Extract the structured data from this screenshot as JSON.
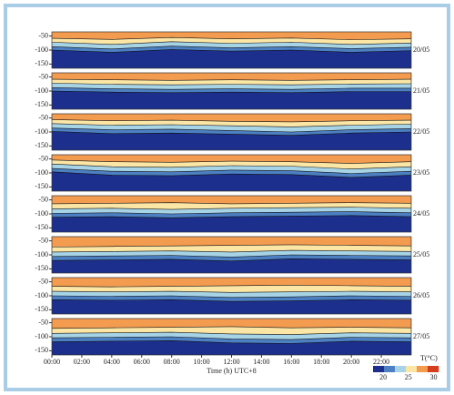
{
  "chart_data": [
    {
      "type": "contour",
      "label": "20/05",
      "xlim": [
        0,
        24
      ],
      "ylim": [
        -165,
        -35
      ],
      "yticks": [
        -50,
        -100,
        -150
      ],
      "x": [
        0,
        4,
        8,
        12,
        16,
        20,
        24
      ],
      "isotherms": [
        {
          "color": "#fbe6a6",
          "values": [
            -58,
            -62,
            -55,
            -60,
            -57,
            -63,
            -60
          ]
        },
        {
          "color": "#a7d3e6",
          "values": [
            -72,
            -80,
            -70,
            -76,
            -72,
            -80,
            -75
          ]
        },
        {
          "color": "#4c80c2",
          "values": [
            -88,
            -96,
            -86,
            -92,
            -88,
            -95,
            -90
          ]
        },
        {
          "color": "#1d2f8c",
          "values": [
            -100,
            -108,
            -98,
            -104,
            -100,
            -108,
            -102
          ]
        }
      ]
    },
    {
      "type": "contour",
      "label": "21/05",
      "xlim": [
        0,
        24
      ],
      "ylim": [
        -165,
        -35
      ],
      "yticks": [
        -50,
        -100,
        -150
      ],
      "x": [
        0,
        4,
        8,
        12,
        16,
        20,
        24
      ],
      "isotherms": [
        {
          "color": "#fbe6a6",
          "values": [
            -58,
            -60,
            -62,
            -60,
            -62,
            -60,
            -58
          ]
        },
        {
          "color": "#a7d3e6",
          "values": [
            -72,
            -76,
            -78,
            -76,
            -78,
            -75,
            -74
          ]
        },
        {
          "color": "#4c80c2",
          "values": [
            -88,
            -92,
            -94,
            -92,
            -94,
            -90,
            -90
          ]
        },
        {
          "color": "#1d2f8c",
          "values": [
            -100,
            -104,
            -106,
            -104,
            -106,
            -102,
            -102
          ]
        }
      ]
    },
    {
      "type": "contour",
      "label": "22/05",
      "xlim": [
        0,
        24
      ],
      "ylim": [
        -165,
        -35
      ],
      "yticks": [
        -50,
        -100,
        -150
      ],
      "x": [
        0,
        4,
        8,
        12,
        16,
        20,
        24
      ],
      "isotherms": [
        {
          "color": "#fbe6a6",
          "values": [
            -56,
            -60,
            -58,
            -62,
            -64,
            -60,
            -58
          ]
        },
        {
          "color": "#a7d3e6",
          "values": [
            -70,
            -76,
            -74,
            -78,
            -82,
            -76,
            -72
          ]
        },
        {
          "color": "#4c80c2",
          "values": [
            -86,
            -92,
            -90,
            -95,
            -100,
            -92,
            -88
          ]
        },
        {
          "color": "#1d2f8c",
          "values": [
            -98,
            -106,
            -104,
            -108,
            -112,
            -104,
            -100
          ]
        }
      ]
    },
    {
      "type": "contour",
      "label": "23/05",
      "xlim": [
        0,
        24
      ],
      "ylim": [
        -165,
        -35
      ],
      "yticks": [
        -50,
        -100,
        -150
      ],
      "x": [
        0,
        4,
        8,
        12,
        16,
        20,
        24
      ],
      "isotherms": [
        {
          "color": "#fbe6a6",
          "values": [
            -54,
            -60,
            -62,
            -58,
            -60,
            -66,
            -60
          ]
        },
        {
          "color": "#a7d3e6",
          "values": [
            -68,
            -78,
            -80,
            -74,
            -76,
            -86,
            -78
          ]
        },
        {
          "color": "#4c80c2",
          "values": [
            -84,
            -94,
            -96,
            -90,
            -92,
            -102,
            -94
          ]
        },
        {
          "color": "#1d2f8c",
          "values": [
            -96,
            -108,
            -110,
            -104,
            -106,
            -116,
            -108
          ]
        }
      ]
    },
    {
      "type": "contour",
      "label": "24/05",
      "xlim": [
        0,
        24
      ],
      "ylim": [
        -165,
        -35
      ],
      "yticks": [
        -50,
        -100,
        -150
      ],
      "x": [
        0,
        4,
        8,
        12,
        16,
        20,
        24
      ],
      "isotherms": [
        {
          "color": "#fbe6a6",
          "values": [
            -64,
            -62,
            -60,
            -64,
            -62,
            -60,
            -62
          ]
        },
        {
          "color": "#a7d3e6",
          "values": [
            -82,
            -80,
            -84,
            -80,
            -78,
            -76,
            -80
          ]
        },
        {
          "color": "#4c80c2",
          "values": [
            -98,
            -96,
            -100,
            -96,
            -94,
            -92,
            -96
          ]
        },
        {
          "color": "#1d2f8c",
          "values": [
            -112,
            -110,
            -114,
            -110,
            -108,
            -106,
            -110
          ]
        }
      ]
    },
    {
      "type": "contour",
      "label": "25/05",
      "xlim": [
        0,
        24
      ],
      "ylim": [
        -165,
        -35
      ],
      "yticks": [
        -50,
        -100,
        -150
      ],
      "x": [
        0,
        4,
        8,
        12,
        16,
        20,
        24
      ],
      "isotherms": [
        {
          "color": "#fbe6a6",
          "values": [
            -72,
            -70,
            -68,
            -66,
            -64,
            -66,
            -68
          ]
        },
        {
          "color": "#a7d3e6",
          "values": [
            -90,
            -88,
            -86,
            -90,
            -84,
            -86,
            -88
          ]
        },
        {
          "color": "#4c80c2",
          "values": [
            -106,
            -104,
            -102,
            -108,
            -100,
            -102,
            -104
          ]
        },
        {
          "color": "#1d2f8c",
          "values": [
            -120,
            -118,
            -116,
            -122,
            -114,
            -116,
            -118
          ]
        }
      ]
    },
    {
      "type": "contour",
      "label": "26/05",
      "xlim": [
        0,
        24
      ],
      "ylim": [
        -165,
        -35
      ],
      "yticks": [
        -50,
        -100,
        -150
      ],
      "x": [
        0,
        4,
        8,
        12,
        16,
        20,
        24
      ],
      "isotherms": [
        {
          "color": "#fbe6a6",
          "values": [
            -66,
            -68,
            -66,
            -64,
            -62,
            -64,
            -66
          ]
        },
        {
          "color": "#a7d3e6",
          "values": [
            -84,
            -86,
            -84,
            -88,
            -86,
            -84,
            -86
          ]
        },
        {
          "color": "#4c80c2",
          "values": [
            -100,
            -102,
            -100,
            -106,
            -104,
            -100,
            -102
          ]
        },
        {
          "color": "#1d2f8c",
          "values": [
            -114,
            -116,
            -114,
            -120,
            -118,
            -114,
            -116
          ]
        }
      ]
    },
    {
      "type": "contour",
      "label": "27/05",
      "xlim": [
        0,
        24
      ],
      "ylim": [
        -165,
        -35
      ],
      "yticks": [
        -50,
        -100,
        -150
      ],
      "x": [
        0,
        4,
        8,
        12,
        16,
        20,
        24
      ],
      "isotherms": [
        {
          "color": "#fbe6a6",
          "values": [
            -70,
            -68,
            -66,
            -64,
            -68,
            -66,
            -68
          ]
        },
        {
          "color": "#a7d3e6",
          "values": [
            -88,
            -86,
            -84,
            -90,
            -92,
            -86,
            -88
          ]
        },
        {
          "color": "#4c80c2",
          "values": [
            -104,
            -102,
            -100,
            -108,
            -110,
            -102,
            -104
          ]
        },
        {
          "color": "#1d2f8c",
          "values": [
            -118,
            -116,
            -114,
            -122,
            -124,
            -116,
            -118
          ]
        }
      ],
      "xticks": [
        {
          "value": 0,
          "label": "00:00"
        },
        {
          "value": 2,
          "label": "02:00"
        },
        {
          "value": 4,
          "label": "04:00"
        },
        {
          "value": 6,
          "label": "06:00"
        },
        {
          "value": 8,
          "label": "08:00"
        },
        {
          "value": 10,
          "label": "10:00"
        },
        {
          "value": 12,
          "label": "12:00"
        },
        {
          "value": 14,
          "label": "14:00"
        },
        {
          "value": 16,
          "label": "16:00"
        },
        {
          "value": 18,
          "label": "18:00"
        },
        {
          "value": 20,
          "label": "20:00"
        },
        {
          "value": 22,
          "label": "22:00"
        }
      ],
      "x_label": "Time (h) UTC+8",
      "colorbar": {
        "label": "T(°C)",
        "lim": [
          18,
          31
        ],
        "ticks": [
          20,
          25,
          30
        ],
        "colors": [
          "#1d2f8c",
          "#4c80c2",
          "#a7d3e6",
          "#fbe6a6",
          "#f39c50",
          "#d43d1e"
        ]
      }
    }
  ]
}
